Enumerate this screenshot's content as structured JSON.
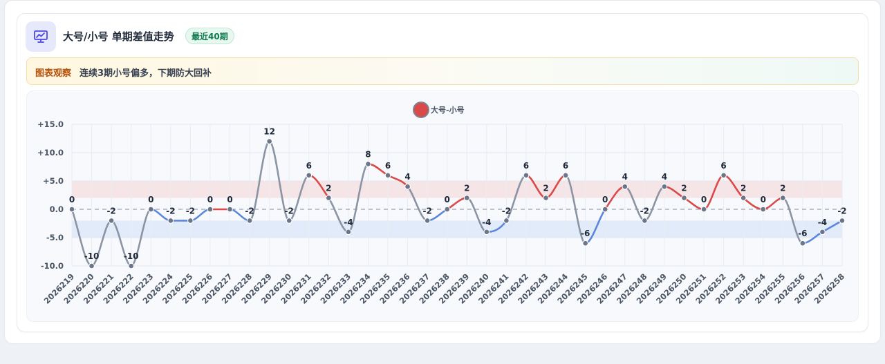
{
  "header": {
    "title": "大号/小号 单期差值走势",
    "badge": "最近40期",
    "icon": "chart-presentation-icon"
  },
  "observation": {
    "tag": "图表观察",
    "text": "连续3期小号偏多，下期防大回补"
  },
  "colors": {
    "positive": "#d94a4a",
    "negative": "#5b86d9",
    "neutral": "#8a94a3",
    "upper_band": "#f6dde0",
    "lower_band": "#dbe5fa"
  },
  "chart_data": {
    "type": "line",
    "smooth": true,
    "legend": {
      "label": "大号-小号",
      "position": "top-center"
    },
    "categories": [
      "2026219",
      "2026220",
      "2026221",
      "2026222",
      "2026223",
      "2026224",
      "2026225",
      "2026226",
      "2026227",
      "2026228",
      "2026229",
      "2026230",
      "2026231",
      "2026232",
      "2026233",
      "2026234",
      "2026235",
      "2026236",
      "2026237",
      "2026238",
      "2026239",
      "2026240",
      "2026241",
      "2026242",
      "2026243",
      "2026244",
      "2026245",
      "2026246",
      "2026247",
      "2026248",
      "2026249",
      "2026250",
      "2026251",
      "2026252",
      "2026253",
      "2026254",
      "2026255",
      "2026256",
      "2026257",
      "2026258"
    ],
    "series": [
      {
        "name": "大号-小号",
        "values": [
          0,
          -10,
          -2,
          -10,
          0,
          -2,
          -2,
          0,
          0,
          -2,
          12,
          -2,
          6,
          2,
          -4,
          8,
          6,
          4,
          -2,
          0,
          2,
          -4,
          -2,
          6,
          2,
          6,
          -6,
          0,
          4,
          -2,
          4,
          2,
          0,
          6,
          2,
          0,
          2,
          -6,
          -4,
          -2
        ]
      }
    ],
    "value_labels": [
      "0",
      "-10",
      "-2",
      "-10",
      "0",
      "-2",
      "-2",
      "0",
      "0",
      "-2",
      "12",
      "-2",
      "6",
      "2",
      "-4",
      "8",
      "6",
      "4",
      "-2",
      "0",
      "2",
      "-4",
      "-2",
      "6",
      "2",
      "6",
      "-6",
      "0",
      "4",
      "-2",
      "4",
      "2",
      "0",
      "6",
      "2",
      "0",
      "2",
      "-6",
      "-4",
      "-2"
    ],
    "yticks": [
      "+15.0",
      "+10.0",
      "+5.0",
      "0.0",
      "-5.0",
      "-10.0"
    ],
    "ytick_values": [
      15,
      10,
      5,
      0,
      -5,
      -10
    ],
    "ylim": [
      -10,
      15
    ],
    "bands": [
      {
        "from": 2,
        "to": 5,
        "kind": "upper"
      },
      {
        "from": -5,
        "to": -2,
        "kind": "lower"
      }
    ],
    "zero_line": "dashed",
    "grid": true
  }
}
